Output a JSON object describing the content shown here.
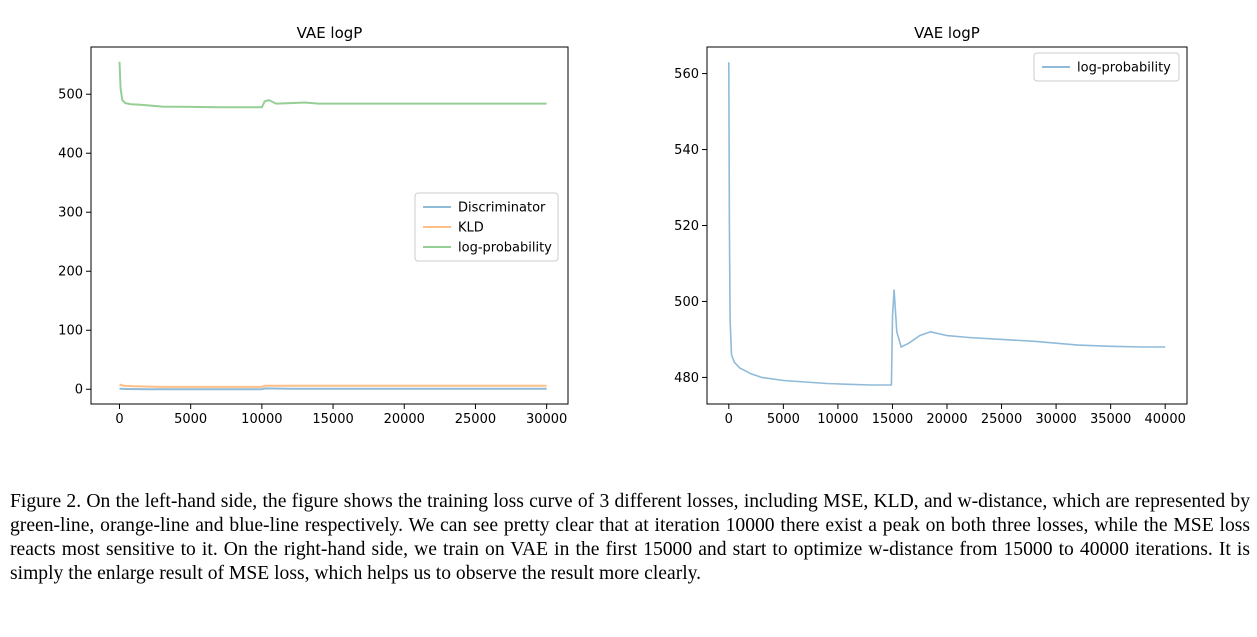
{
  "chart_data": [
    {
      "type": "line",
      "title": "VAE logP",
      "xlabel": "",
      "ylabel": "",
      "xlim": [
        -2000,
        31500
      ],
      "ylim": [
        -25,
        580
      ],
      "xticks": [
        0,
        5000,
        10000,
        15000,
        20000,
        25000,
        30000
      ],
      "yticks": [
        0,
        100,
        200,
        300,
        400,
        500
      ],
      "grid": false,
      "legend": "center-right",
      "series": [
        {
          "name": "Discriminator",
          "color": "#8fbbd9",
          "x": [
            0,
            500,
            2000,
            5000,
            10000,
            10200,
            12000,
            15000,
            20000,
            25000,
            30000
          ],
          "y": [
            1,
            0.5,
            0,
            0,
            0,
            1.5,
            1,
            1,
            1,
            1,
            1
          ]
        },
        {
          "name": "KLD",
          "color": "#ffbf87",
          "x": [
            0,
            300,
            1000,
            3000,
            5000,
            10000,
            10200,
            12000,
            15000,
            20000,
            25000,
            30000
          ],
          "y": [
            8,
            6,
            5,
            4,
            4,
            4,
            6,
            6,
            6,
            6,
            6,
            6
          ]
        },
        {
          "name": "log-probability",
          "color": "#95cf95",
          "x": [
            0,
            80,
            200,
            400,
            800,
            1500,
            3000,
            5000,
            7000,
            10000,
            10200,
            10500,
            11000,
            12000,
            13000,
            14000,
            15000,
            20000,
            25000,
            30000
          ],
          "y": [
            555,
            510,
            490,
            485,
            483,
            482,
            479,
            478.5,
            478,
            478,
            488,
            490,
            484,
            485,
            486,
            484,
            484,
            484,
            484,
            484
          ]
        }
      ]
    },
    {
      "type": "line",
      "title": "VAE logP",
      "xlabel": "",
      "ylabel": "",
      "xlim": [
        -2000,
        42000
      ],
      "ylim": [
        473,
        567
      ],
      "xticks": [
        0,
        5000,
        10000,
        15000,
        20000,
        25000,
        30000,
        35000,
        40000
      ],
      "yticks": [
        480,
        500,
        520,
        540,
        560
      ],
      "grid": false,
      "legend": "top-right",
      "series": [
        {
          "name": "log-probability",
          "color": "#8fbbd9",
          "x": [
            0,
            50,
            120,
            250,
            500,
            1000,
            2000,
            3000,
            5000,
            7000,
            9000,
            11000,
            13000,
            14900,
            15000,
            15150,
            15400,
            15800,
            16500,
            17500,
            18500,
            20000,
            22000,
            25000,
            28000,
            30000,
            32000,
            35000,
            38000,
            40000
          ],
          "y": [
            563,
            520,
            495,
            486,
            484,
            482.5,
            481,
            480,
            479.2,
            478.8,
            478.4,
            478.2,
            478,
            478,
            496,
            503,
            492,
            488,
            489,
            491,
            492,
            491,
            490.5,
            490,
            489.5,
            489,
            488.5,
            488.2,
            488,
            488
          ]
        }
      ]
    }
  ],
  "caption": "Figure 2. On the left-hand side, the figure shows the training loss curve of 3 different losses, including MSE, KLD, and w-distance, which are represented by green-line, orange-line and blue-line respectively. We can see pretty clear that at iteration 10000 there exist a peak on both three losses, while the MSE loss reacts most sensitive to it. On the right-hand side, we train on VAE in the first 15000 and start to optimize w-distance from 15000 to 40000 iterations. It is simply the enlarge result of MSE loss, which helps us to observe the result more clearly."
}
